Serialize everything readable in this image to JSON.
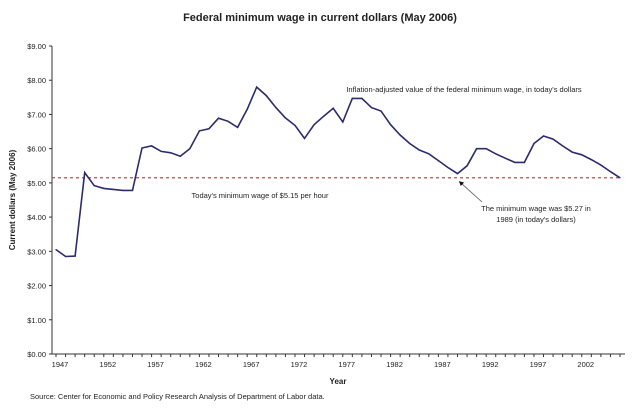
{
  "chart_data": {
    "type": "line",
    "title": "Federal minimum wage in current dollars (May 2006)",
    "xlabel": "Year",
    "ylabel": "Current dollars (May 2006)",
    "xlim": [
      1947,
      2006
    ],
    "ylim": [
      0,
      9
    ],
    "y_ticks": [
      "$0.00",
      "$1.00",
      "$2.00",
      "$3.00",
      "$4.00",
      "$5.00",
      "$6.00",
      "$7.00",
      "$8.00",
      "$9.00"
    ],
    "x_ticks": [
      "1947",
      "1952",
      "1957",
      "1962",
      "1967",
      "1972",
      "1977",
      "1982",
      "1987",
      "1992",
      "1997",
      "2002"
    ],
    "grid": false,
    "series": [
      {
        "name": "Inflation-adjusted value of the federal minimum wage, in today's dollars",
        "color": "#2b2b6e",
        "x": [
          1947,
          1948,
          1949,
          1950,
          1951,
          1952,
          1953,
          1954,
          1955,
          1956,
          1957,
          1958,
          1959,
          1960,
          1961,
          1962,
          1963,
          1964,
          1965,
          1966,
          1967,
          1968,
          1969,
          1970,
          1971,
          1972,
          1973,
          1974,
          1975,
          1976,
          1977,
          1978,
          1979,
          1980,
          1981,
          1982,
          1983,
          1984,
          1985,
          1986,
          1987,
          1988,
          1989,
          1990,
          1991,
          1992,
          1993,
          1994,
          1995,
          1996,
          1997,
          1998,
          1999,
          2000,
          2001,
          2002,
          2003,
          2004,
          2005,
          2006
        ],
        "values": [
          3.05,
          2.85,
          2.86,
          5.3,
          4.92,
          4.84,
          4.81,
          4.78,
          4.78,
          6.02,
          6.08,
          5.92,
          5.88,
          5.78,
          6.0,
          6.52,
          6.58,
          6.89,
          6.8,
          6.62,
          7.15,
          7.8,
          7.55,
          7.2,
          6.9,
          6.68,
          6.3,
          6.7,
          6.95,
          7.18,
          6.78,
          7.47,
          7.47,
          7.2,
          7.1,
          6.7,
          6.4,
          6.15,
          5.96,
          5.85,
          5.65,
          5.45,
          5.27,
          5.5,
          6.0,
          6.0,
          5.85,
          5.72,
          5.6,
          5.6,
          6.15,
          6.37,
          6.28,
          6.08,
          5.9,
          5.82,
          5.68,
          5.52,
          5.33,
          5.15
        ]
      }
    ],
    "reference_line": {
      "value": 5.15,
      "color": "#d04050",
      "label": "Today's minimum wage  of $5.15 per hour"
    },
    "annotations": {
      "series_label": "Inflation-adjusted value of the federal minimum wage, in today's dollars",
      "arrow_line1": "The minimum wage was $5.27 in",
      "arrow_line2": "1989 (in today's dollars)",
      "arrow_target": {
        "x": 1989,
        "y": 5.27
      }
    },
    "source": "Source: Center for Economic and Policy Research Analysis of Department of Labor data."
  }
}
